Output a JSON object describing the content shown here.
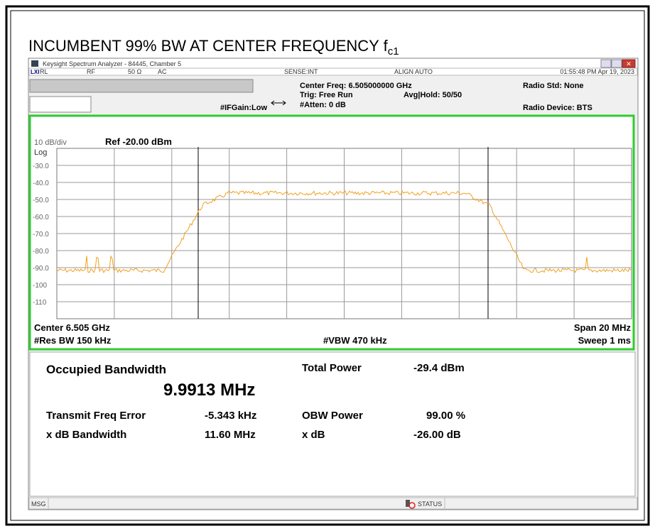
{
  "page_title": {
    "text": "INCUMBENT 99% BW AT CENTER FREQUENCY f",
    "subscript": "c1"
  },
  "window": {
    "title": "Keysight Spectrum Analyzer - 84445, Chamber 5",
    "status": [
      "RL",
      "RF",
      "50 Ω",
      "AC",
      "SENSE:INT",
      "ALIGN AUTO",
      "01:55:48 PM Apr 19, 2023"
    ]
  },
  "settings": {
    "center_freq": "Center Freq: 6.505000000 GHz",
    "trig": "Trig: Free Run",
    "atten": "#Atten: 0 dB",
    "avg_hold": "Avg|Hold: 50/50",
    "if_gain": "#IFGain:Low",
    "radio_std": "Radio Std: None",
    "radio_device": "Radio Device: BTS"
  },
  "graph": {
    "scale": "10 dB/div",
    "ref": "Ref -20.00 dBm",
    "log": "Log",
    "y_labels": [
      "-30.0",
      "-40.0",
      "-50.0",
      "-60.0",
      "-70.0",
      "-80.0",
      "-90.0",
      "-100",
      "-110"
    ],
    "center": "Center 6.505 GHz",
    "span": "Span 20 MHz",
    "res_bw": "#Res BW 150 kHz",
    "vbw": "#VBW 470 kHz",
    "sweep": "Sweep 1 ms"
  },
  "results": {
    "obw_label": "Occupied Bandwidth",
    "obw_value": "9.9913 MHz",
    "total_power_label": "Total Power",
    "total_power_value": "-29.4 dBm",
    "freq_error_label": "Transmit Freq Error",
    "freq_error_value": "-5.343 kHz",
    "obw_power_label": "OBW Power",
    "obw_power_value": "99.00 %",
    "xdb_bw_label": "x dB Bandwidth",
    "xdb_bw_value": "11.60 MHz",
    "xdb_label": "x dB",
    "xdb_value": "-26.00 dB"
  },
  "footer": {
    "msg": "MSG",
    "status": "STATUS"
  }
}
